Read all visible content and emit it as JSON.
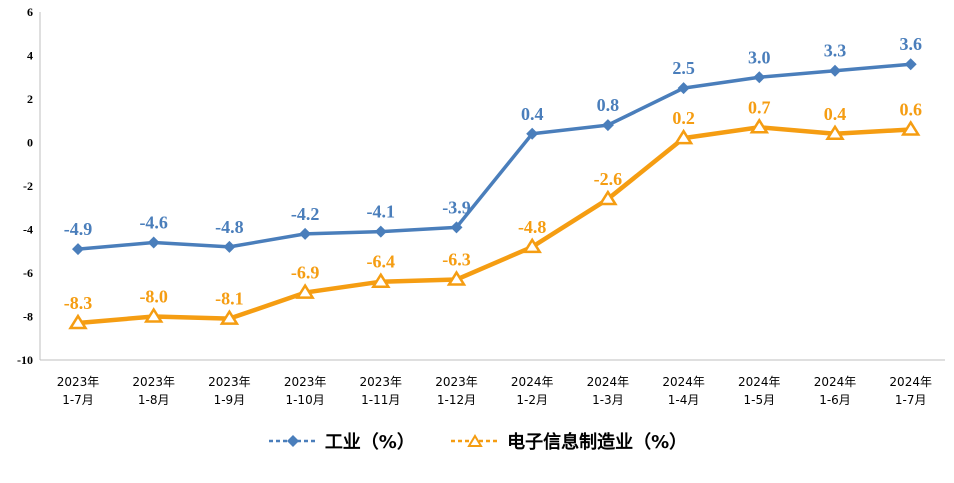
{
  "chart_data": {
    "type": "line",
    "categories": [
      [
        "2023年",
        "1-7月"
      ],
      [
        "2023年",
        "1-8月"
      ],
      [
        "2023年",
        "1-9月"
      ],
      [
        "2023年",
        "1-10月"
      ],
      [
        "2023年",
        "1-11月"
      ],
      [
        "2023年",
        "1-12月"
      ],
      [
        "2024年",
        "1-2月"
      ],
      [
        "2024年",
        "1-3月"
      ],
      [
        "2024年",
        "1-4月"
      ],
      [
        "2024年",
        "1-5月"
      ],
      [
        "2024年",
        "1-6月"
      ],
      [
        "2024年",
        "1-7月"
      ]
    ],
    "series": [
      {
        "name": "工业（%）",
        "color": "#4a7ebb",
        "marker": "diamond",
        "values": [
          -4.9,
          -4.6,
          -4.8,
          -4.2,
          -4.1,
          -3.9,
          0.4,
          0.8,
          2.5,
          3.0,
          3.3,
          3.6
        ],
        "labels": [
          "-4.9",
          "-4.6",
          "-4.8",
          "-4.2",
          "-4.1",
          "-3.9",
          "0.4",
          "0.8",
          "2.5",
          "3.0",
          "3.3",
          "3.6"
        ]
      },
      {
        "name": "电子信息制造业（%）",
        "color": "#f59d12",
        "marker": "triangle",
        "values": [
          -8.3,
          -8.0,
          -8.1,
          -6.9,
          -6.4,
          -6.3,
          -4.8,
          -2.6,
          0.2,
          0.7,
          0.4,
          0.6
        ],
        "labels": [
          "-8.3",
          "-8.0",
          "-8.1",
          "-6.9",
          "-6.4",
          "-6.3",
          "-4.8",
          "-2.6",
          "0.2",
          "0.7",
          "0.4",
          "0.6"
        ]
      }
    ],
    "yticks": [
      "-10",
      "-8",
      "-6",
      "-4",
      "-2",
      "0",
      "2",
      "4",
      "6"
    ],
    "ylim": [
      -10,
      6
    ],
    "grid": false,
    "legend_position": "bottom"
  }
}
